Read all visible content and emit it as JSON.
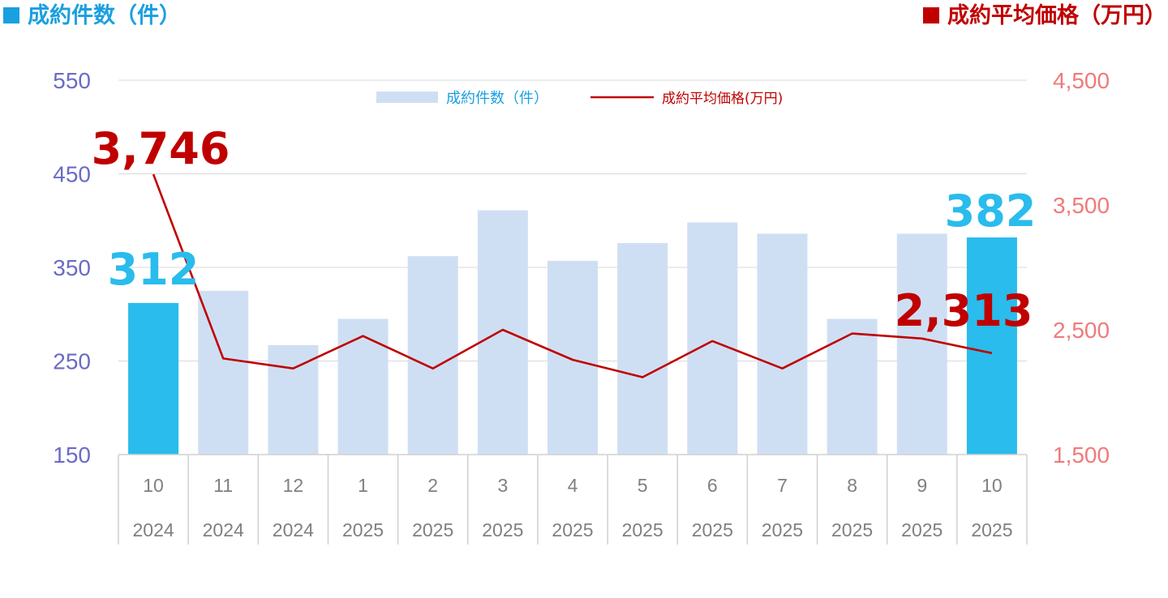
{
  "titles": {
    "left": "成約件数（件）",
    "right": "成約平均価格（万円）"
  },
  "colors": {
    "bar_normal": "#cfdff3",
    "bar_highlight": "#29bcec",
    "line": "#c00000",
    "left_axis": "#6b6bc4",
    "right_axis": "#f07a7a",
    "left_title": "#1a9fe0",
    "right_title": "#c00000",
    "category_text": "#808080"
  },
  "chart_data": {
    "type": "bar",
    "categories": [
      {
        "month": "10",
        "year": "2024"
      },
      {
        "month": "11",
        "year": "2024"
      },
      {
        "month": "12",
        "year": "2024"
      },
      {
        "month": "1",
        "year": "2025"
      },
      {
        "month": "2",
        "year": "2025"
      },
      {
        "month": "3",
        "year": "2025"
      },
      {
        "month": "4",
        "year": "2025"
      },
      {
        "month": "5",
        "year": "2025"
      },
      {
        "month": "6",
        "year": "2025"
      },
      {
        "month": "7",
        "year": "2025"
      },
      {
        "month": "8",
        "year": "2025"
      },
      {
        "month": "9",
        "year": "2025"
      },
      {
        "month": "10",
        "year": "2025"
      }
    ],
    "series": [
      {
        "name": "成約件数（件）",
        "type": "bar",
        "axis": "left",
        "values": [
          312,
          325,
          267,
          295,
          362,
          411,
          357,
          376,
          398,
          386,
          295,
          386,
          382
        ],
        "highlight": [
          true,
          false,
          false,
          false,
          false,
          false,
          false,
          false,
          false,
          false,
          false,
          false,
          true
        ]
      },
      {
        "name": "成約平均価格(万円)",
        "type": "line",
        "axis": "right",
        "values": [
          3746,
          2270,
          2190,
          2450,
          2190,
          2500,
          2260,
          2120,
          2410,
          2190,
          2470,
          2430,
          2313
        ]
      }
    ],
    "left_axis": {
      "ylim": [
        150,
        550
      ],
      "ticks": [
        "550",
        "450",
        "350",
        "250",
        "150"
      ],
      "values": [
        550,
        450,
        350,
        250,
        150
      ]
    },
    "right_axis": {
      "ylim": [
        1500,
        4500
      ],
      "ticks": [
        "4,500",
        "3,500",
        "2,500",
        "1,500"
      ],
      "values": [
        4500,
        3500,
        2500,
        1500
      ]
    },
    "annotations": [
      {
        "text": "3,746",
        "series": 1,
        "index": 0
      },
      {
        "text": "312",
        "series": 0,
        "index": 0
      },
      {
        "text": "382",
        "series": 0,
        "index": 12
      },
      {
        "text": "2,313",
        "series": 1,
        "index": 12
      }
    ],
    "legend": {
      "position": "top-center"
    },
    "grid": true
  }
}
